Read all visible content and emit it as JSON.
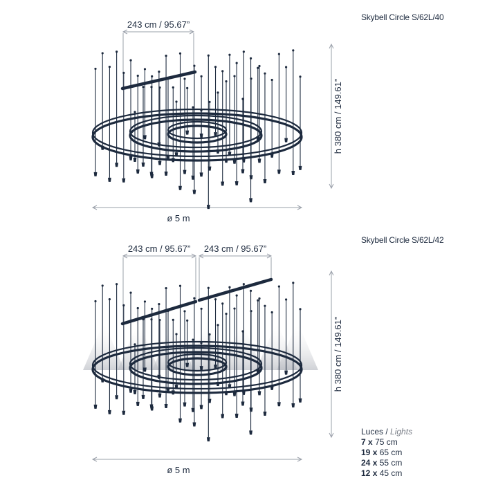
{
  "top": {
    "model": "Skybell Circle S/62L/40",
    "bar_label": "243 cm / 95.67”",
    "height_label": "h 380 cm / 149.61”",
    "diameter_label": "ø 5 m"
  },
  "bottom": {
    "model": "Skybell Circle S/62L/42",
    "bar_label_1": "243 cm / 95.67”",
    "bar_label_2": "243 cm / 95.67”",
    "height_label": "h 380 cm / 149.61”",
    "diameter_label": "ø 5 m"
  },
  "lights": {
    "title": "Luces /",
    "title_en": "Lights",
    "items": [
      {
        "qty": "7",
        "x": "x",
        "size": "75 cm"
      },
      {
        "qty": "19",
        "x": "x",
        "size": "65 cm"
      },
      {
        "qty": "24",
        "x": "x",
        "size": "55 cm"
      },
      {
        "qty": "12",
        "x": "x",
        "size": "45 cm"
      }
    ]
  },
  "colors": {
    "ink": "#1d2a3e",
    "dim": "#9aa0aa",
    "glow": "#c9ccd2"
  }
}
